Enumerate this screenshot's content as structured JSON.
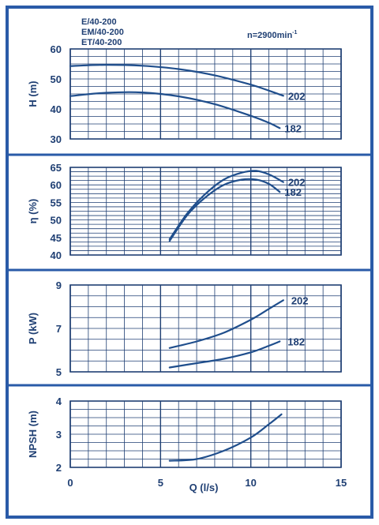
{
  "header": {
    "models": [
      "E/40-200",
      "EM/40-200",
      "ET/40-200"
    ],
    "speed_prefix": "n=2900min",
    "speed_exp": "-1"
  },
  "colors": {
    "ink": "#1f3f73",
    "grid": "#1f3f73",
    "curve": "#1f4e8c",
    "frame": "#2a5ba8",
    "background": "#ffffff"
  },
  "chart_data": [
    {
      "type": "line",
      "ylabel": "H (m)",
      "ylim": [
        30,
        60
      ],
      "yticks": [
        30,
        40,
        50,
        60
      ],
      "xlim": [
        0,
        15
      ],
      "grid": true,
      "series": [
        {
          "name": "202",
          "x": [
            0,
            2,
            4,
            6,
            8,
            10,
            11,
            11.8
          ],
          "values": [
            54.3,
            54.7,
            54.4,
            53.3,
            51.2,
            48.1,
            46.1,
            44.4
          ]
        },
        {
          "name": "182",
          "x": [
            0,
            2,
            4,
            6,
            8,
            10,
            11,
            11.6
          ],
          "values": [
            44.3,
            45.4,
            45.5,
            44.2,
            41.6,
            37.7,
            35.4,
            33.6
          ]
        }
      ]
    },
    {
      "type": "line",
      "ylabel": "η (%)",
      "ylim": [
        40,
        65
      ],
      "yticks": [
        40,
        45,
        50,
        55,
        60,
        65
      ],
      "xlim": [
        0,
        15
      ],
      "grid": true,
      "series": [
        {
          "name": "202",
          "x": [
            5.5,
            6.5,
            7.5,
            8.5,
            9.5,
            10.3,
            11,
            11.8
          ],
          "values": [
            44.5,
            52,
            57.5,
            61.5,
            63.5,
            64,
            63,
            60.8
          ]
        },
        {
          "name": "182",
          "x": [
            5.5,
            6.5,
            7.5,
            8.5,
            9.5,
            10.3,
            11,
            11.6
          ],
          "values": [
            44,
            51.5,
            56.5,
            60,
            61.5,
            61.5,
            60.3,
            58
          ]
        }
      ]
    },
    {
      "type": "line",
      "ylabel": "P (kW)",
      "ylim": [
        5,
        9
      ],
      "yticks": [
        5,
        7,
        9
      ],
      "xlim": [
        0,
        15
      ],
      "grid": true,
      "series": [
        {
          "name": "202",
          "x": [
            5.5,
            7,
            8.5,
            10,
            11,
            11.8
          ],
          "values": [
            6.1,
            6.4,
            6.8,
            7.4,
            7.9,
            8.3
          ]
        },
        {
          "name": "182",
          "x": [
            5.5,
            7,
            8.5,
            10,
            11,
            11.6
          ],
          "values": [
            5.2,
            5.4,
            5.6,
            5.9,
            6.2,
            6.4
          ]
        }
      ]
    },
    {
      "type": "line",
      "ylabel": "NPSH (m)",
      "xlabel": "Q (l/s)",
      "ylim": [
        2,
        4
      ],
      "yticks": [
        2,
        3,
        4
      ],
      "xlim": [
        0,
        15
      ],
      "xticks": [
        0,
        5,
        10,
        15
      ],
      "grid": true,
      "series": [
        {
          "name": "",
          "x": [
            5.5,
            7,
            8.5,
            10,
            11,
            11.7
          ],
          "values": [
            2.2,
            2.25,
            2.5,
            2.9,
            3.3,
            3.6
          ]
        }
      ]
    }
  ]
}
